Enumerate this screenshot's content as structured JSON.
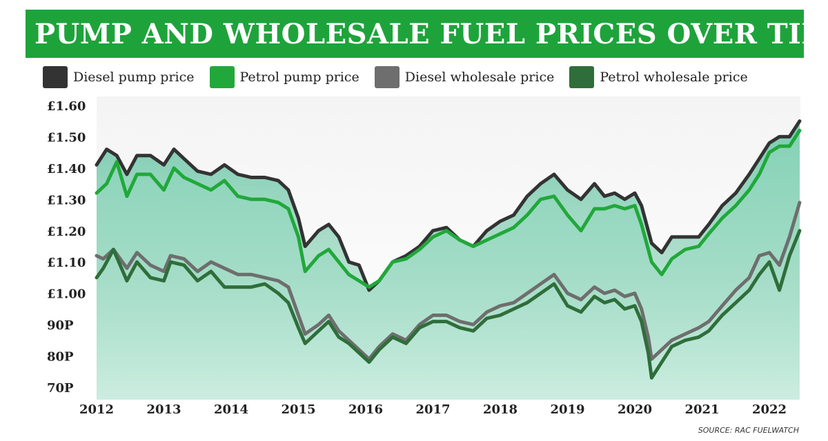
{
  "title": "UK PUMP AND WHOLESALE FUEL PRICES OVER TIME",
  "source": "SOURCE: RAC FUELWATCH",
  "colors": {
    "title_bg": "#1ea33b",
    "diesel_pump": "#333333",
    "petrol_pump": "#21a83a",
    "diesel_wholesale": "#6e6e6e",
    "petrol_wholesale": "#2f6e3a",
    "area_fill": "#7fcfb4"
  },
  "chart_data": {
    "type": "line",
    "title": "UK PUMP AND WHOLESALE FUEL PRICES OVER TIME",
    "x_ticks": [
      "2012",
      "2013",
      "2014",
      "2015",
      "2016",
      "2017",
      "2018",
      "2019",
      "2020",
      "2021",
      "2022"
    ],
    "y_ticks": [
      "£1.60",
      "£1.50",
      "£1.40",
      "£1.30",
      "£1.20",
      "£1.10",
      "£1.00",
      "90P",
      "80P",
      "70P"
    ],
    "ylim": [
      0.7,
      1.6
    ],
    "xlim": [
      2012.0,
      2022.0
    ],
    "legend_position": "top",
    "series": [
      {
        "name": "Diesel pump price",
        "color": "#333333",
        "points": [
          [
            2012.0,
            1.41
          ],
          [
            2012.15,
            1.46
          ],
          [
            2012.3,
            1.44
          ],
          [
            2012.45,
            1.38
          ],
          [
            2012.6,
            1.44
          ],
          [
            2012.8,
            1.44
          ],
          [
            2013.0,
            1.41
          ],
          [
            2013.15,
            1.46
          ],
          [
            2013.3,
            1.43
          ],
          [
            2013.5,
            1.39
          ],
          [
            2013.7,
            1.38
          ],
          [
            2013.9,
            1.41
          ],
          [
            2014.1,
            1.38
          ],
          [
            2014.3,
            1.37
          ],
          [
            2014.5,
            1.37
          ],
          [
            2014.7,
            1.36
          ],
          [
            2014.85,
            1.33
          ],
          [
            2015.0,
            1.24
          ],
          [
            2015.1,
            1.15
          ],
          [
            2015.3,
            1.2
          ],
          [
            2015.45,
            1.22
          ],
          [
            2015.6,
            1.18
          ],
          [
            2015.75,
            1.1
          ],
          [
            2015.9,
            1.09
          ],
          [
            2016.05,
            1.01
          ],
          [
            2016.2,
            1.04
          ],
          [
            2016.4,
            1.1
          ],
          [
            2016.6,
            1.12
          ],
          [
            2016.8,
            1.15
          ],
          [
            2017.0,
            1.2
          ],
          [
            2017.2,
            1.21
          ],
          [
            2017.4,
            1.17
          ],
          [
            2017.6,
            1.15
          ],
          [
            2017.8,
            1.2
          ],
          [
            2018.0,
            1.23
          ],
          [
            2018.2,
            1.25
          ],
          [
            2018.4,
            1.31
          ],
          [
            2018.6,
            1.35
          ],
          [
            2018.8,
            1.38
          ],
          [
            2019.0,
            1.33
          ],
          [
            2019.2,
            1.3
          ],
          [
            2019.4,
            1.35
          ],
          [
            2019.55,
            1.31
          ],
          [
            2019.7,
            1.32
          ],
          [
            2019.85,
            1.3
          ],
          [
            2020.0,
            1.32
          ],
          [
            2020.1,
            1.28
          ],
          [
            2020.25,
            1.16
          ],
          [
            2020.4,
            1.13
          ],
          [
            2020.55,
            1.18
          ],
          [
            2020.75,
            1.18
          ],
          [
            2020.95,
            1.18
          ],
          [
            2021.1,
            1.22
          ],
          [
            2021.3,
            1.28
          ],
          [
            2021.5,
            1.32
          ],
          [
            2021.7,
            1.38
          ],
          [
            2021.85,
            1.43
          ],
          [
            2022.0,
            1.48
          ],
          [
            2022.15,
            1.5
          ],
          [
            2022.3,
            1.5
          ],
          [
            2022.45,
            1.55
          ]
        ]
      },
      {
        "name": "Petrol pump price",
        "color": "#21a83a",
        "points": [
          [
            2012.0,
            1.32
          ],
          [
            2012.15,
            1.35
          ],
          [
            2012.3,
            1.42
          ],
          [
            2012.45,
            1.31
          ],
          [
            2012.6,
            1.38
          ],
          [
            2012.8,
            1.38
          ],
          [
            2013.0,
            1.33
          ],
          [
            2013.15,
            1.4
          ],
          [
            2013.3,
            1.37
          ],
          [
            2013.5,
            1.35
          ],
          [
            2013.7,
            1.33
          ],
          [
            2013.9,
            1.36
          ],
          [
            2014.1,
            1.31
          ],
          [
            2014.3,
            1.3
          ],
          [
            2014.5,
            1.3
          ],
          [
            2014.7,
            1.29
          ],
          [
            2014.85,
            1.27
          ],
          [
            2015.0,
            1.18
          ],
          [
            2015.1,
            1.07
          ],
          [
            2015.3,
            1.12
          ],
          [
            2015.45,
            1.14
          ],
          [
            2015.6,
            1.1
          ],
          [
            2015.75,
            1.06
          ],
          [
            2015.9,
            1.04
          ],
          [
            2016.05,
            1.02
          ],
          [
            2016.2,
            1.04
          ],
          [
            2016.4,
            1.1
          ],
          [
            2016.6,
            1.11
          ],
          [
            2016.8,
            1.14
          ],
          [
            2017.0,
            1.18
          ],
          [
            2017.2,
            1.2
          ],
          [
            2017.4,
            1.17
          ],
          [
            2017.6,
            1.15
          ],
          [
            2017.8,
            1.17
          ],
          [
            2018.0,
            1.19
          ],
          [
            2018.2,
            1.21
          ],
          [
            2018.4,
            1.25
          ],
          [
            2018.6,
            1.3
          ],
          [
            2018.8,
            1.31
          ],
          [
            2019.0,
            1.25
          ],
          [
            2019.2,
            1.2
          ],
          [
            2019.4,
            1.27
          ],
          [
            2019.55,
            1.27
          ],
          [
            2019.7,
            1.28
          ],
          [
            2019.85,
            1.27
          ],
          [
            2020.0,
            1.28
          ],
          [
            2020.1,
            1.22
          ],
          [
            2020.25,
            1.1
          ],
          [
            2020.4,
            1.06
          ],
          [
            2020.55,
            1.11
          ],
          [
            2020.75,
            1.14
          ],
          [
            2020.95,
            1.15
          ],
          [
            2021.1,
            1.19
          ],
          [
            2021.3,
            1.24
          ],
          [
            2021.5,
            1.28
          ],
          [
            2021.7,
            1.33
          ],
          [
            2021.85,
            1.38
          ],
          [
            2022.0,
            1.45
          ],
          [
            2022.15,
            1.47
          ],
          [
            2022.3,
            1.47
          ],
          [
            2022.45,
            1.52
          ]
        ]
      },
      {
        "name": "Diesel wholesale price",
        "color": "#6e6e6e",
        "points": [
          [
            2012.0,
            1.12
          ],
          [
            2012.1,
            1.11
          ],
          [
            2012.25,
            1.14
          ],
          [
            2012.45,
            1.08
          ],
          [
            2012.6,
            1.13
          ],
          [
            2012.8,
            1.09
          ],
          [
            2013.0,
            1.07
          ],
          [
            2013.1,
            1.12
          ],
          [
            2013.3,
            1.11
          ],
          [
            2013.5,
            1.07
          ],
          [
            2013.7,
            1.1
          ],
          [
            2013.9,
            1.08
          ],
          [
            2014.1,
            1.06
          ],
          [
            2014.3,
            1.06
          ],
          [
            2014.5,
            1.05
          ],
          [
            2014.7,
            1.04
          ],
          [
            2014.85,
            1.02
          ],
          [
            2015.0,
            0.93
          ],
          [
            2015.1,
            0.87
          ],
          [
            2015.3,
            0.9
          ],
          [
            2015.45,
            0.93
          ],
          [
            2015.6,
            0.88
          ],
          [
            2015.75,
            0.85
          ],
          [
            2015.9,
            0.82
          ],
          [
            2016.05,
            0.79
          ],
          [
            2016.2,
            0.83
          ],
          [
            2016.4,
            0.87
          ],
          [
            2016.6,
            0.85
          ],
          [
            2016.8,
            0.9
          ],
          [
            2017.0,
            0.93
          ],
          [
            2017.2,
            0.93
          ],
          [
            2017.4,
            0.91
          ],
          [
            2017.6,
            0.9
          ],
          [
            2017.8,
            0.94
          ],
          [
            2018.0,
            0.96
          ],
          [
            2018.2,
            0.97
          ],
          [
            2018.4,
            1.0
          ],
          [
            2018.6,
            1.03
          ],
          [
            2018.8,
            1.06
          ],
          [
            2019.0,
            1.0
          ],
          [
            2019.2,
            0.98
          ],
          [
            2019.4,
            1.02
          ],
          [
            2019.55,
            1.0
          ],
          [
            2019.7,
            1.01
          ],
          [
            2019.85,
            0.99
          ],
          [
            2020.0,
            1.0
          ],
          [
            2020.1,
            0.95
          ],
          [
            2020.2,
            0.86
          ],
          [
            2020.25,
            0.79
          ],
          [
            2020.4,
            0.82
          ],
          [
            2020.55,
            0.85
          ],
          [
            2020.75,
            0.87
          ],
          [
            2020.95,
            0.89
          ],
          [
            2021.1,
            0.91
          ],
          [
            2021.3,
            0.96
          ],
          [
            2021.5,
            1.01
          ],
          [
            2021.7,
            1.05
          ],
          [
            2021.85,
            1.12
          ],
          [
            2022.0,
            1.13
          ],
          [
            2022.15,
            1.09
          ],
          [
            2022.3,
            1.18
          ],
          [
            2022.45,
            1.29
          ]
        ]
      },
      {
        "name": "Petrol wholesale price",
        "color": "#2f6e3a",
        "points": [
          [
            2012.0,
            1.05
          ],
          [
            2012.1,
            1.08
          ],
          [
            2012.25,
            1.14
          ],
          [
            2012.45,
            1.04
          ],
          [
            2012.6,
            1.1
          ],
          [
            2012.8,
            1.05
          ],
          [
            2013.0,
            1.04
          ],
          [
            2013.1,
            1.1
          ],
          [
            2013.3,
            1.09
          ],
          [
            2013.5,
            1.04
          ],
          [
            2013.7,
            1.07
          ],
          [
            2013.9,
            1.02
          ],
          [
            2014.1,
            1.02
          ],
          [
            2014.3,
            1.02
          ],
          [
            2014.5,
            1.03
          ],
          [
            2014.7,
            1.0
          ],
          [
            2014.85,
            0.97
          ],
          [
            2015.0,
            0.89
          ],
          [
            2015.1,
            0.84
          ],
          [
            2015.3,
            0.88
          ],
          [
            2015.45,
            0.91
          ],
          [
            2015.6,
            0.86
          ],
          [
            2015.75,
            0.84
          ],
          [
            2015.9,
            0.81
          ],
          [
            2016.05,
            0.78
          ],
          [
            2016.2,
            0.82
          ],
          [
            2016.4,
            0.86
          ],
          [
            2016.6,
            0.84
          ],
          [
            2016.8,
            0.89
          ],
          [
            2017.0,
            0.91
          ],
          [
            2017.2,
            0.91
          ],
          [
            2017.4,
            0.89
          ],
          [
            2017.6,
            0.88
          ],
          [
            2017.8,
            0.92
          ],
          [
            2018.0,
            0.93
          ],
          [
            2018.2,
            0.95
          ],
          [
            2018.4,
            0.97
          ],
          [
            2018.6,
            1.0
          ],
          [
            2018.8,
            1.03
          ],
          [
            2019.0,
            0.96
          ],
          [
            2019.2,
            0.94
          ],
          [
            2019.4,
            0.99
          ],
          [
            2019.55,
            0.97
          ],
          [
            2019.7,
            0.98
          ],
          [
            2019.85,
            0.95
          ],
          [
            2020.0,
            0.96
          ],
          [
            2020.1,
            0.91
          ],
          [
            2020.2,
            0.81
          ],
          [
            2020.25,
            0.73
          ],
          [
            2020.4,
            0.78
          ],
          [
            2020.55,
            0.83
          ],
          [
            2020.75,
            0.85
          ],
          [
            2020.95,
            0.86
          ],
          [
            2021.1,
            0.88
          ],
          [
            2021.3,
            0.93
          ],
          [
            2021.5,
            0.97
          ],
          [
            2021.7,
            1.01
          ],
          [
            2021.85,
            1.06
          ],
          [
            2022.0,
            1.1
          ],
          [
            2022.15,
            1.01
          ],
          [
            2022.3,
            1.12
          ],
          [
            2022.45,
            1.2
          ]
        ]
      }
    ]
  }
}
